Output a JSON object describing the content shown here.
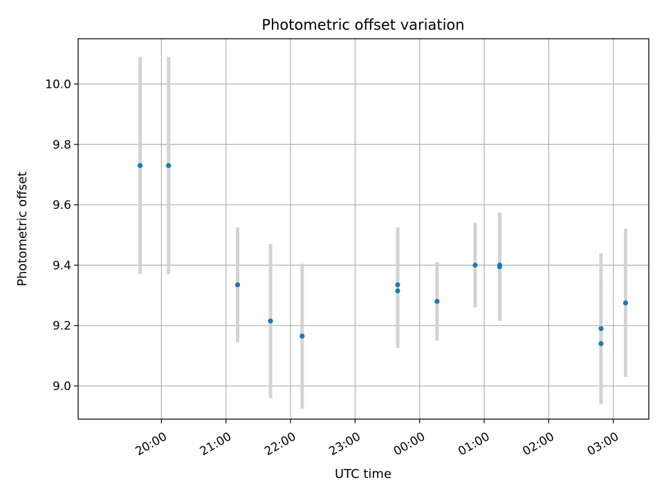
{
  "chart_data": {
    "type": "scatter",
    "title": "Photometric offset variation",
    "xlabel": "UTC time",
    "ylabel": "Photometric offset",
    "xlim_hours": [
      18.71,
      27.55
    ],
    "ylim": [
      8.89,
      10.15
    ],
    "grid": true,
    "x_ticks": [
      {
        "h": 20,
        "label": "20:00"
      },
      {
        "h": 21,
        "label": "21:00"
      },
      {
        "h": 22,
        "label": "22:00"
      },
      {
        "h": 23,
        "label": "23:00"
      },
      {
        "h": 24,
        "label": "00:00"
      },
      {
        "h": 25,
        "label": "01:00"
      },
      {
        "h": 26,
        "label": "02:00"
      },
      {
        "h": 27,
        "label": "03:00"
      }
    ],
    "y_ticks": [
      {
        "v": 9.0,
        "label": "9.0"
      },
      {
        "v": 9.2,
        "label": "9.2"
      },
      {
        "v": 9.4,
        "label": "9.4"
      },
      {
        "v": 9.6,
        "label": "9.6"
      },
      {
        "v": 9.8,
        "label": "9.8"
      },
      {
        "v": 10.0,
        "label": "10.0"
      }
    ],
    "colors": {
      "point": "#1f77b4",
      "errorbar": "#d3d3d3",
      "grid": "#b0b0b0"
    },
    "points": [
      {
        "time": "19:40",
        "h": 19.67,
        "y": 9.73,
        "err": 0.36
      },
      {
        "time": "20:06",
        "h": 20.11,
        "y": 9.73,
        "err": 0.36
      },
      {
        "time": "21:10",
        "h": 21.18,
        "y": 9.335,
        "err": 0.19
      },
      {
        "time": "21:41",
        "h": 21.69,
        "y": 9.215,
        "err": 0.255
      },
      {
        "time": "22:11",
        "h": 22.18,
        "y": 9.165,
        "err": 0.24
      },
      {
        "time": "23:39",
        "h": 23.66,
        "y": 9.335,
        "err": 0.19
      },
      {
        "time": "23:39",
        "h": 23.66,
        "y": 9.315,
        "err": 0.19
      },
      {
        "time": "00:16",
        "h": 24.27,
        "y": 9.28,
        "err": 0.13
      },
      {
        "time": "00:51",
        "h": 24.86,
        "y": 9.4,
        "err": 0.14
      },
      {
        "time": "01:14",
        "h": 25.24,
        "y": 9.4,
        "err": 0.175
      },
      {
        "time": "01:14",
        "h": 25.24,
        "y": 9.395,
        "err": 0.18
      },
      {
        "time": "02:48",
        "h": 26.81,
        "y": 9.19,
        "err": 0.25
      },
      {
        "time": "02:48",
        "h": 26.81,
        "y": 9.14,
        "err": 0.2
      },
      {
        "time": "03:11",
        "h": 27.19,
        "y": 9.275,
        "err": 0.245
      }
    ]
  }
}
